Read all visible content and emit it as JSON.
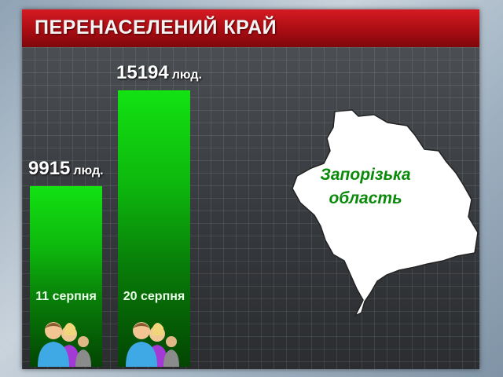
{
  "header": {
    "title": "ПЕРЕНАСЕЛЕНИЙ КРАЙ"
  },
  "chart_data": {
    "type": "bar",
    "title": "ПЕРЕНАСЕЛЕНИЙ КРАЙ",
    "categories": [
      "11 серпня",
      "20 серпня"
    ],
    "values": [
      9915,
      15194
    ],
    "value_labels": [
      "9915",
      "15194"
    ],
    "unit": "люд.",
    "grid": true,
    "bar_color": "#12e212"
  },
  "map": {
    "label_line1": "Запорізька",
    "label_line2": "область",
    "fill": "#ffffff",
    "label_color": "#0a8a0a"
  },
  "icons": [
    "people-group-icon"
  ]
}
